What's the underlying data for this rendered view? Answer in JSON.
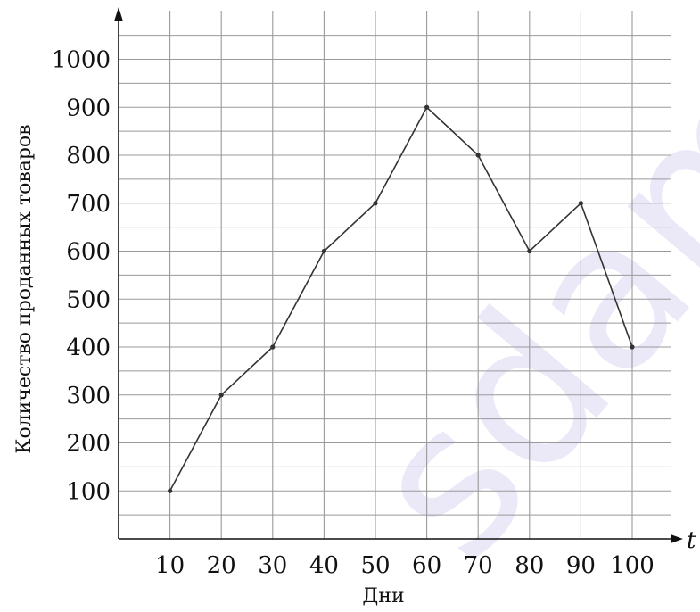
{
  "chart_data": {
    "type": "line",
    "title": "",
    "xlabel": "Дни",
    "ylabel": "Количество проданных товаров",
    "x_axis_variable": "t",
    "x": [
      10,
      20,
      30,
      40,
      50,
      60,
      70,
      80,
      90,
      100
    ],
    "series": [
      {
        "values": [
          100,
          300,
          400,
          600,
          700,
          900,
          800,
          600,
          700,
          400
        ]
      }
    ],
    "xlim": [
      0,
      105
    ],
    "ylim": [
      0,
      1050
    ],
    "x_ticks": [
      "10",
      "20",
      "30",
      "40",
      "50",
      "60",
      "70",
      "80",
      "90",
      "100"
    ],
    "y_ticks": [
      "100",
      "200",
      "300",
      "400",
      "500",
      "600",
      "700",
      "800",
      "900",
      "1000"
    ],
    "grid": true,
    "legend": "none",
    "colors": {
      "line": "#333333",
      "grid": "#9a9a9a",
      "axis": "#111111"
    }
  },
  "watermark_text": "sdamgia"
}
